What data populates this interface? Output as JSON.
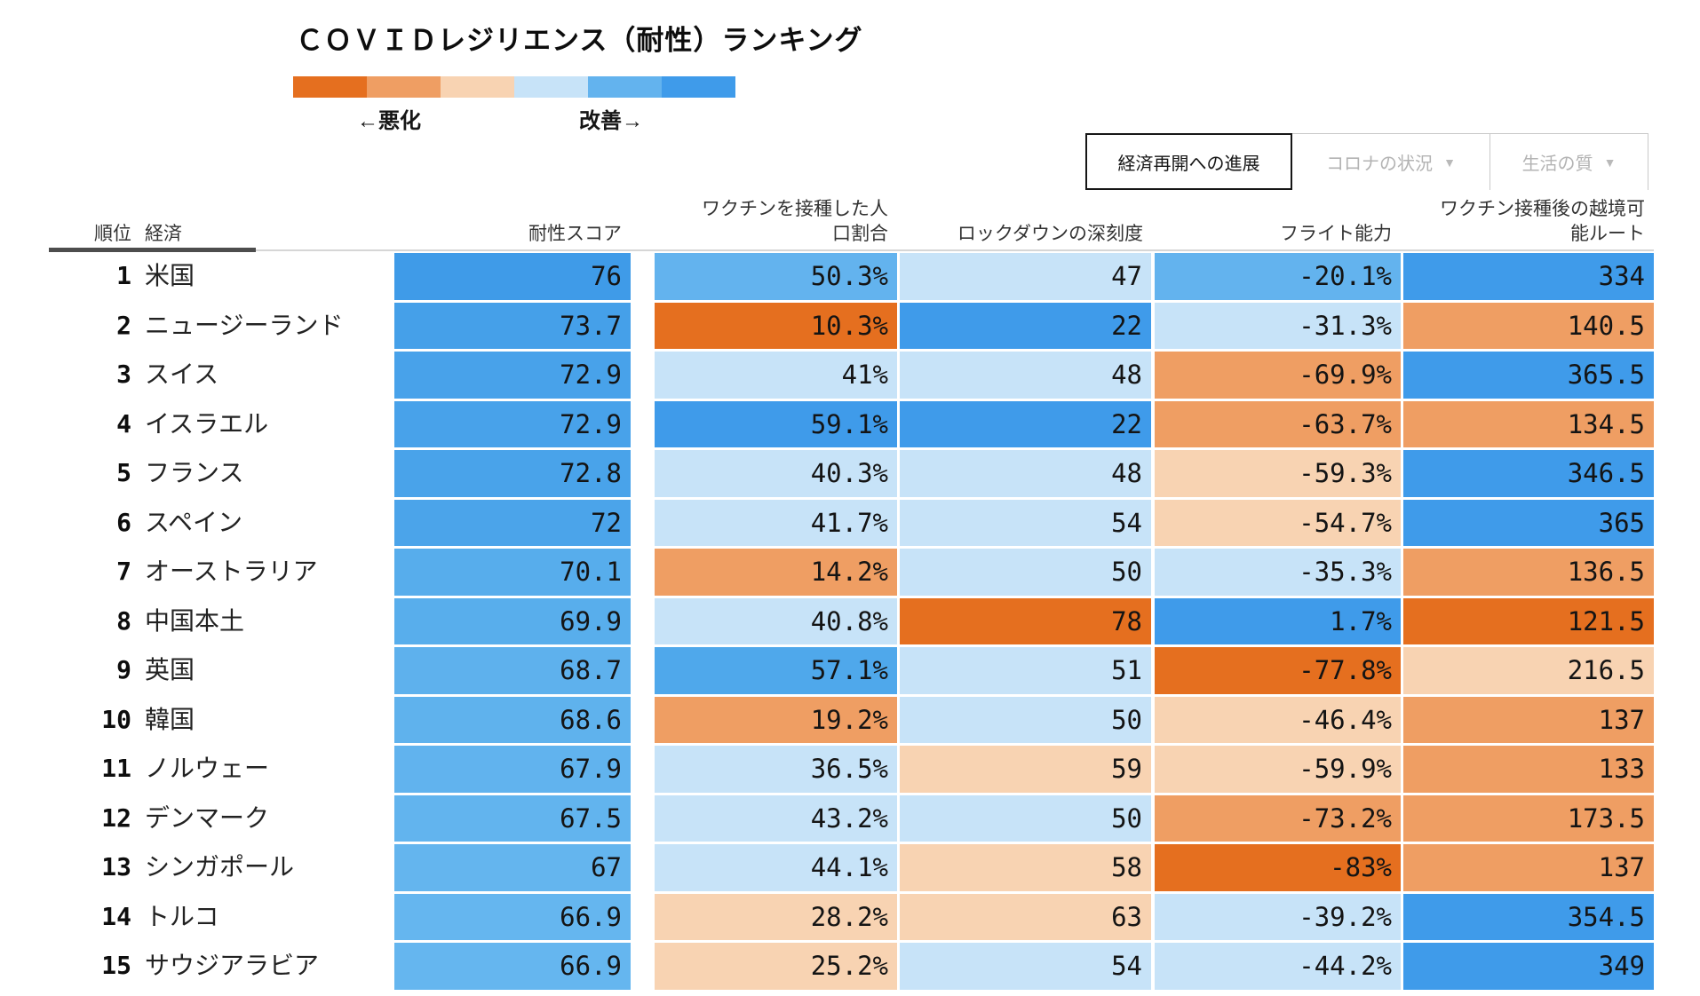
{
  "title": "ＣＯＶＩＤレジリエンス（耐性）ランキング",
  "dropdown_icon": "▼",
  "legend": {
    "worse_label": "←悪化",
    "better_label": "改善→",
    "colors": [
      "#E56F1F",
      "#EF9E63",
      "#F8D3B2",
      "#C7E3F8",
      "#63B3EE",
      "#3F9BEA"
    ]
  },
  "tabs": [
    {
      "label": "経済再開への進展",
      "active": true,
      "has_dropdown": false
    },
    {
      "label": "コロナの状況",
      "active": false,
      "has_dropdown": true
    },
    {
      "label": "生活の質",
      "active": false,
      "has_dropdown": true
    }
  ],
  "chart_data": {
    "type": "heatmap",
    "title": "ＣＯＶＩＤレジリエンス（耐性）ランキング",
    "legend_scale": {
      "worse": "←悪化",
      "better": "改善→"
    },
    "palette": {
      "dark_orange": "#E56F1F",
      "medium_orange": "#EF9E63",
      "light_orange": "#F8D3B2",
      "light_blue": "#C7E3F8",
      "medium_blue": "#63B3EE",
      "strong_blue": "#3F9BEA"
    },
    "columns": {
      "rank": "順位",
      "economy": "経済",
      "score": "耐性スコア",
      "vaccinated": "ワクチンを接種した人口割合",
      "lockdown": "ロックダウンの深刻度",
      "flight": "フライト能力",
      "routes": "ワクチン接種後の越境可能ルート"
    },
    "rows": [
      {
        "rank": "1",
        "economy": "米国",
        "cells": [
          {
            "v": "76",
            "c": "#3F9BE8"
          },
          {
            "v": "50.3%",
            "c": "#63B3EE"
          },
          {
            "v": "47",
            "c": "#C7E3F8"
          },
          {
            "v": "-20.1%",
            "c": "#63B3EE"
          },
          {
            "v": "334",
            "c": "#3F9BEA"
          }
        ]
      },
      {
        "rank": "2",
        "economy": "ニュージーランド",
        "cells": [
          {
            "v": "73.7",
            "c": "#45A0E9"
          },
          {
            "v": "10.3%",
            "c": "#E56F1F"
          },
          {
            "v": "22",
            "c": "#3F9BEA"
          },
          {
            "v": "-31.3%",
            "c": "#C7E3F8"
          },
          {
            "v": "140.5",
            "c": "#EF9E63"
          }
        ]
      },
      {
        "rank": "3",
        "economy": "スイス",
        "cells": [
          {
            "v": "72.9",
            "c": "#48A2EA"
          },
          {
            "v": "41%",
            "c": "#C7E3F8"
          },
          {
            "v": "48",
            "c": "#C7E3F8"
          },
          {
            "v": "-69.9%",
            "c": "#EF9E63"
          },
          {
            "v": "365.5",
            "c": "#3F9BEA"
          }
        ]
      },
      {
        "rank": "4",
        "economy": "イスラエル",
        "cells": [
          {
            "v": "72.9",
            "c": "#48A2EA"
          },
          {
            "v": "59.1%",
            "c": "#3F9BEA"
          },
          {
            "v": "22",
            "c": "#3F9BEA"
          },
          {
            "v": "-63.7%",
            "c": "#EF9E63"
          },
          {
            "v": "134.5",
            "c": "#EF9E63"
          }
        ]
      },
      {
        "rank": "5",
        "economy": "フランス",
        "cells": [
          {
            "v": "72.8",
            "c": "#49A3EA"
          },
          {
            "v": "40.3%",
            "c": "#C7E3F8"
          },
          {
            "v": "48",
            "c": "#C7E3F8"
          },
          {
            "v": "-59.3%",
            "c": "#F8D3B2"
          },
          {
            "v": "346.5",
            "c": "#3F9BEA"
          }
        ]
      },
      {
        "rank": "6",
        "economy": "スペイン",
        "cells": [
          {
            "v": "72",
            "c": "#4BA4EA"
          },
          {
            "v": "41.7%",
            "c": "#C7E3F8"
          },
          {
            "v": "54",
            "c": "#C7E3F8"
          },
          {
            "v": "-54.7%",
            "c": "#F8D3B2"
          },
          {
            "v": "365",
            "c": "#3F9BEA"
          }
        ]
      },
      {
        "rank": "7",
        "economy": "オーストラリア",
        "cells": [
          {
            "v": "70.1",
            "c": "#57ADEC"
          },
          {
            "v": "14.2%",
            "c": "#EF9E63"
          },
          {
            "v": "50",
            "c": "#C7E3F8"
          },
          {
            "v": "-35.3%",
            "c": "#C7E3F8"
          },
          {
            "v": "136.5",
            "c": "#EF9E63"
          }
        ]
      },
      {
        "rank": "8",
        "economy": "中国本土",
        "cells": [
          {
            "v": "69.9",
            "c": "#58AEEC"
          },
          {
            "v": "40.8%",
            "c": "#C7E3F8"
          },
          {
            "v": "78",
            "c": "#E56F1F"
          },
          {
            "v": "1.7%",
            "c": "#3F9BEA"
          },
          {
            "v": "121.5",
            "c": "#E56F1F"
          }
        ]
      },
      {
        "rank": "9",
        "economy": "英国",
        "cells": [
          {
            "v": "68.7",
            "c": "#5EB1ED"
          },
          {
            "v": "57.1%",
            "c": "#4FA8EB"
          },
          {
            "v": "51",
            "c": "#C7E3F8"
          },
          {
            "v": "-77.8%",
            "c": "#E56F1F"
          },
          {
            "v": "216.5",
            "c": "#F8D3B2"
          }
        ]
      },
      {
        "rank": "10",
        "economy": "韓国",
        "cells": [
          {
            "v": "68.6",
            "c": "#5FB2ED"
          },
          {
            "v": "19.2%",
            "c": "#EF9E63"
          },
          {
            "v": "50",
            "c": "#C7E3F8"
          },
          {
            "v": "-46.4%",
            "c": "#F8D3B2"
          },
          {
            "v": "137",
            "c": "#EF9E63"
          }
        ]
      },
      {
        "rank": "11",
        "economy": "ノルウェー",
        "cells": [
          {
            "v": "67.9",
            "c": "#61B3EE"
          },
          {
            "v": "36.5%",
            "c": "#C7E3F8"
          },
          {
            "v": "59",
            "c": "#F8D3B2"
          },
          {
            "v": "-59.9%",
            "c": "#F8D3B2"
          },
          {
            "v": "133",
            "c": "#EF9E63"
          }
        ]
      },
      {
        "rank": "12",
        "economy": "デンマーク",
        "cells": [
          {
            "v": "67.5",
            "c": "#62B4EE"
          },
          {
            "v": "43.2%",
            "c": "#C7E3F8"
          },
          {
            "v": "50",
            "c": "#C7E3F8"
          },
          {
            "v": "-73.2%",
            "c": "#EF9E63"
          },
          {
            "v": "173.5",
            "c": "#EF9E63"
          }
        ]
      },
      {
        "rank": "13",
        "economy": "シンガポール",
        "cells": [
          {
            "v": "67",
            "c": "#64B5EE"
          },
          {
            "v": "44.1%",
            "c": "#C7E3F8"
          },
          {
            "v": "58",
            "c": "#F8D3B2"
          },
          {
            "v": "-83%",
            "c": "#E56F1F"
          },
          {
            "v": "137",
            "c": "#EF9E63"
          }
        ]
      },
      {
        "rank": "14",
        "economy": "トルコ",
        "cells": [
          {
            "v": "66.9",
            "c": "#65B6EF"
          },
          {
            "v": "28.2%",
            "c": "#F8D3B2"
          },
          {
            "v": "63",
            "c": "#F8D3B2"
          },
          {
            "v": "-39.2%",
            "c": "#C7E3F8"
          },
          {
            "v": "354.5",
            "c": "#3F9BEA"
          }
        ]
      },
      {
        "rank": "15",
        "economy": "サウジアラビア",
        "cells": [
          {
            "v": "66.9",
            "c": "#65B6EF"
          },
          {
            "v": "25.2%",
            "c": "#F8D3B2"
          },
          {
            "v": "54",
            "c": "#C7E3F8"
          },
          {
            "v": "-44.2%",
            "c": "#C7E3F8"
          },
          {
            "v": "349",
            "c": "#3F9BEA"
          }
        ]
      }
    ]
  }
}
